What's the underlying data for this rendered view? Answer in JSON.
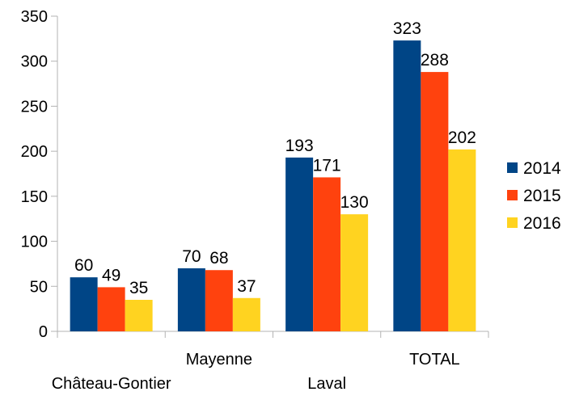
{
  "chart_data": {
    "type": "bar",
    "categories": [
      "Château-Gontier",
      "Mayenne",
      "Laval",
      "TOTAL"
    ],
    "series": [
      {
        "name": "2014",
        "values": [
          60,
          70,
          193,
          323
        ],
        "color": "#004586"
      },
      {
        "name": "2015",
        "values": [
          49,
          68,
          171,
          288
        ],
        "color": "#ff420e"
      },
      {
        "name": "2016",
        "values": [
          35,
          37,
          130,
          202
        ],
        "color": "#ffd320"
      }
    ],
    "ylim": [
      0,
      350
    ],
    "yticks": [
      0,
      50,
      100,
      150,
      200,
      250,
      300,
      350
    ],
    "grid": false,
    "legend_position": "right",
    "data_labels": true
  }
}
